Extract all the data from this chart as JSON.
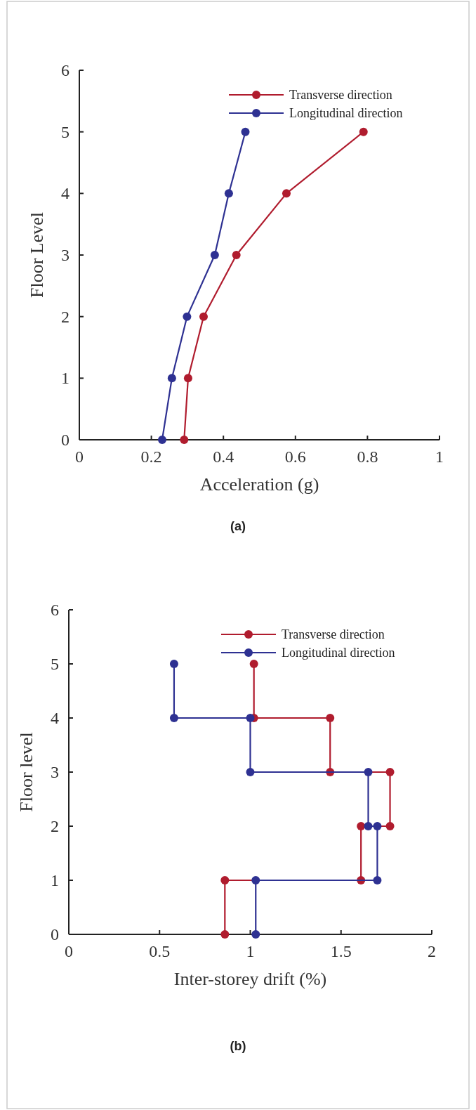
{
  "chart_data": [
    {
      "type": "line",
      "xlabel": "Acceleration (g)",
      "ylabel": "Floor Level",
      "annotations": [
        "(a)"
      ],
      "xlim": [
        0,
        1
      ],
      "xticks": [
        0,
        0.2,
        0.4,
        0.6,
        0.8,
        1
      ],
      "ylim": [
        0,
        6
      ],
      "yticks": [
        0,
        1,
        2,
        3,
        4,
        5,
        6
      ],
      "marker": "circle",
      "legend": "top right",
      "grid": false,
      "series": [
        {
          "name": "Transverse direction",
          "color": "#b01c2e",
          "x": [
            0.291,
            0.302,
            0.345,
            0.436,
            0.575,
            0.789
          ],
          "values": [
            0,
            1,
            2,
            3,
            4,
            5
          ]
        },
        {
          "name": "Longitudinal direction",
          "color": "#2e3192",
          "x": [
            0.23,
            0.257,
            0.299,
            0.376,
            0.415,
            0.461
          ],
          "values": [
            0,
            1,
            2,
            3,
            4,
            5
          ]
        }
      ]
    },
    {
      "type": "line",
      "xlabel": "Inter-storey drift (%)",
      "ylabel": "Floor level",
      "annotations": [
        "(b)"
      ],
      "xlim": [
        0,
        2
      ],
      "xticks": [
        0,
        0.5,
        1,
        1.5,
        2
      ],
      "ylim": [
        0,
        6
      ],
      "yticks": [
        0,
        1,
        2,
        3,
        4,
        5,
        6
      ],
      "marker": "circle",
      "legend": "top right",
      "grid": false,
      "series": [
        {
          "name": "Transverse direction",
          "color": "#b01c2e",
          "x": [
            0.86,
            0.86,
            1.61,
            1.61,
            1.77,
            1.77,
            1.44,
            1.44,
            1.02,
            1.02
          ],
          "values": [
            0,
            1,
            1,
            2,
            2,
            3,
            3,
            4,
            4,
            5
          ]
        },
        {
          "name": "Longitudinal direction",
          "color": "#2e3192",
          "x": [
            1.03,
            1.03,
            1.7,
            1.7,
            1.65,
            1.65,
            1.0,
            1.0,
            0.58,
            0.58
          ],
          "values": [
            0,
            1,
            1,
            2,
            2,
            3,
            3,
            4,
            4,
            5
          ]
        }
      ]
    }
  ]
}
